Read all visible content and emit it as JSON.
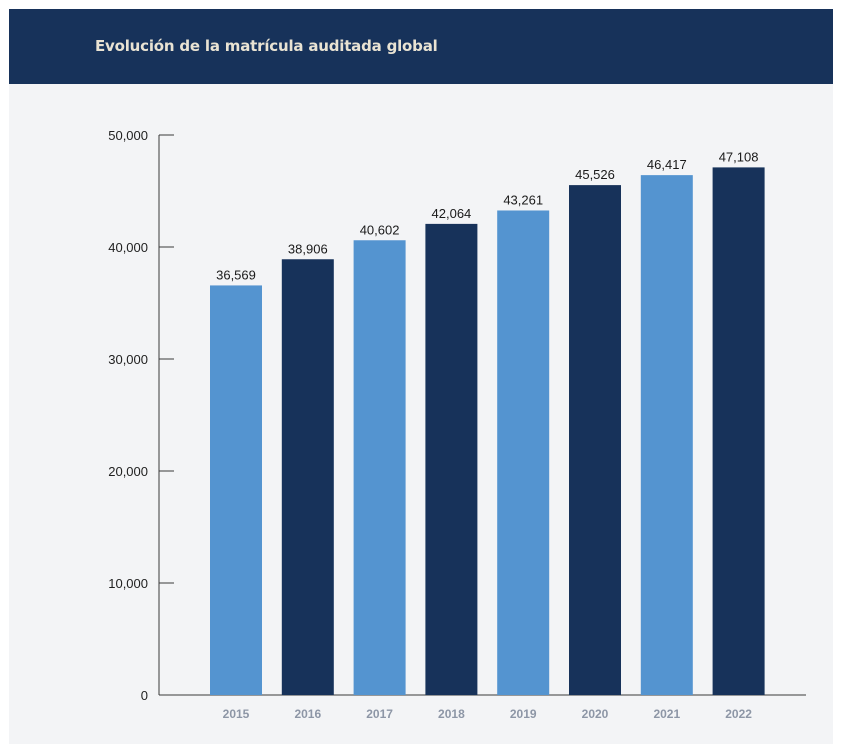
{
  "header": {
    "title": "Evolución de la matrícula auditada global"
  },
  "colors": {
    "header_bg": "#17325a",
    "bar_dark": "#17325a",
    "bar_light": "#5494d0",
    "axis": "#3a3a3a"
  },
  "chart_data": {
    "type": "bar",
    "title": "Evolución de la matrícula auditada global",
    "xlabel": "",
    "ylabel": "",
    "categories": [
      "2015",
      "2016",
      "2017",
      "2018",
      "2019",
      "2020",
      "2021",
      "2022"
    ],
    "values": [
      36569,
      38906,
      40602,
      42064,
      43261,
      45526,
      46417,
      47108
    ],
    "data_labels": [
      "36,569",
      "38,906",
      "40,602",
      "42,064",
      "43,261",
      "45,526",
      "46,417",
      "47,108"
    ],
    "bar_colors": [
      "#5494d0",
      "#17325a",
      "#5494d0",
      "#17325a",
      "#5494d0",
      "#17325a",
      "#5494d0",
      "#17325a"
    ],
    "ylim": [
      0,
      50000
    ],
    "yticks": [
      0,
      10000,
      20000,
      30000,
      40000,
      50000
    ],
    "ytick_labels": [
      "0",
      "10,000",
      "20,000",
      "30,000",
      "40,000",
      "50,000"
    ],
    "grid": false,
    "legend": "none"
  }
}
